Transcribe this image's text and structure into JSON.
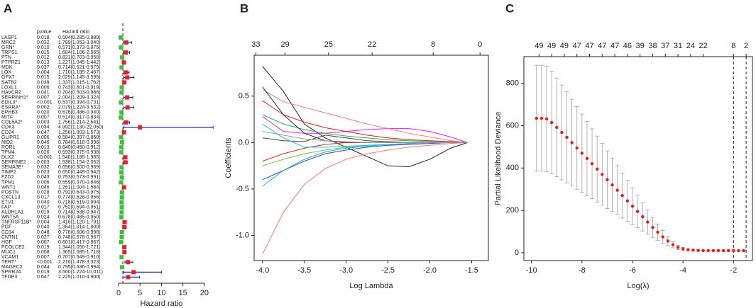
{
  "chart_data": [
    {
      "type": "forest",
      "panel": "A",
      "col_pvalue": "pvalue",
      "col_hr": "Hazard ratio",
      "xlabel": "Hazard ratio",
      "categories": [
        "LASP1",
        "MRC2",
        "GRN*",
        "TRPS1",
        "PTN",
        "PTPRZ1",
        "MDK",
        "LOX",
        "GPX7",
        "SATB2",
        "LOXL1",
        "HAVCR2",
        "SERPINH1*",
        "EDIL3*",
        "ESRRA*",
        "EPHB3",
        "MITF",
        "COL5A2*",
        "CDK3",
        "CD24",
        "GLIPR1",
        "NID2",
        "ROR1",
        "TPM4",
        "DLX2",
        "SERPINE2",
        "SEMA3E*",
        "TIMP2",
        "FZD2",
        "TPM1",
        "WNT1",
        "POSTN",
        "CXCL13",
        "ETV1",
        "FAP",
        "ALDH1A1",
        "WNT5A",
        "TNFRSF11B*",
        "PGF",
        "CD14",
        "CNTN1",
        "HGF",
        "PCOLCE2",
        "MUC1",
        "VCAM1",
        "TERT*",
        "MAGEC2",
        "SPRR2A",
        "TFDP3"
      ],
      "pvalues": [
        "0.018",
        "0.032",
        "0.010",
        "0.015",
        "0.012",
        "0.013",
        "0.037",
        "0.004",
        "0.015",
        "0.039",
        "0.006",
        "0.041",
        "0.007",
        "<0.001",
        "0.002",
        "0.020",
        "0.007",
        "0.003",
        "0.034",
        "0.047",
        "0.006",
        "0.046",
        "0.013",
        "0.026",
        "<0.001",
        "0.003",
        "0.032",
        "0.023",
        "0.043",
        "0.006",
        "0.046",
        "0.028",
        "0.017",
        "0.040",
        "0.017",
        "0.019",
        "0.024",
        "0.004",
        "0.040",
        "0.048",
        "0.027",
        "0.007",
        "0.019",
        "0.008",
        "0.007",
        "<0.001",
        "0.044",
        "0.019",
        "0.047"
      ],
      "values": [
        0.504,
        1.789,
        0.571,
        1.684,
        0.821,
        1.227,
        0.714,
        1.71,
        2.029,
        1.337,
        0.743,
        0.704,
        2.004,
        0.537,
        2.079,
        0.676,
        0.514,
        1.756,
        4.992,
        1.256,
        0.584,
        0.784,
        0.64,
        0.593,
        1.54,
        1.538,
        0.696,
        0.65,
        0.753,
        0.559,
        1.261,
        0.792,
        0.774,
        0.718,
        0.752,
        0.714,
        0.678,
        1.416,
        1.354,
        0.778,
        0.748,
        0.601,
        1.344,
        1.365,
        0.707,
        2.216,
        0.795,
        3.5,
        2.225
      ],
      "lower": [
        0.285,
        1.053,
        0.373,
        1.106,
        0.703,
        1.045,
        0.521,
        1.185,
        1.145,
        1.015,
        0.601,
        0.503,
        1.209,
        0.394,
        1.224,
        0.486,
        0.317,
        1.214,
        1.13,
        1.003,
        0.397,
        0.618,
        0.45,
        0.375,
        1.195,
        1.154,
        0.5,
        0.449,
        0.573,
        0.37,
        1.004,
        0.643,
        0.626,
        0.519,
        0.594,
        0.538,
        0.485,
        1.12,
        1.014,
        0.606,
        0.578,
        0.417,
        1.05,
        1.085,
        0.549,
        1.478,
        0.636,
        1.224,
        1.01
      ],
      "upper": [
        0.889,
        3.04,
        0.875,
        2.565,
        0.958,
        1.442,
        0.979,
        2.467,
        3.595,
        1.762,
        0.919,
        0.986,
        3.324,
        0.731,
        3.532,
        0.94,
        0.834,
        2.541,
        22.05,
        1.573,
        0.858,
        0.996,
        0.912,
        0.938,
        1.985,
        2.052,
        0.969,
        0.942,
        0.991,
        0.846,
        1.584,
        0.975,
        0.956,
        0.994,
        0.951,
        0.947,
        0.95,
        1.791,
        1.809,
        0.998,
        0.967,
        0.867,
        1.721,
        1.718,
        0.91,
        3.323,
        0.994,
        10.011,
        4.9
      ],
      "value_labels": [
        "0.504(0.285-0.889)",
        "1.789(1.053-3.040)",
        "0.571(0.373-0.875)",
        "1.684(1.106-2.565)",
        "0.821(0.703-0.958)",
        "1.227(1.045-1.442)",
        "0.714(0.521-0.979)",
        "1.710(1.185-2.467)",
        "2.029(1.145-3.595)",
        "1.337(1.015-1.762)",
        "0.743(0.601-0.919)",
        "0.704(0.503-0.986)",
        "2.004(1.209-3.324)",
        "0.537(0.394-0.731)",
        "2.079(1.224-3.532)",
        "0.676(0.486-0.940)",
        "0.514(0.317-0.834)",
        "1.756(1.214-2.541)",
        "4.992(1.130-22.050)",
        "1.256(1.003-1.573)",
        "0.584(0.397-0.858)",
        "0.784(0.618-0.996)",
        "0.640(0.450-0.912)",
        "0.593(0.375-0.938)",
        "1.540(1.195-1.985)",
        "1.538(1.154-2.052)",
        "0.696(0.500-0.969)",
        "0.650(0.449-0.942)",
        "0.753(0.573-0.991)",
        "0.559(0.370-0.846)",
        "1.261(1.004-1.584)",
        "0.792(0.643-0.975)",
        "0.774(0.626-0.956)",
        "0.718(0.519-0.994)",
        "0.752(0.594-0.951)",
        "0.714(0.538-0.947)",
        "0.678(0.485-0.950)",
        "1.416(1.120-1.791)",
        "1.354(1.014-1.809)",
        "0.778(0.606-0.998)",
        "0.748(0.578-0.967)",
        "0.601(0.417-0.867)",
        "1.344(1.050-1.721)",
        "1.365(1.085-1.718)",
        "0.707(0.549-0.910)",
        "2.216(1.478-3.323)",
        "0.795(0.636-0.994)",
        "3.500(1.224-10.011)",
        "2.225(1.010-4.900)"
      ],
      "ref_line": 1,
      "color_high": "#e8202a",
      "color_low": "#3cbf3c",
      "ci_color": "#1f2fa8",
      "xlim": [
        0,
        22
      ],
      "xticks": [
        0,
        5,
        10,
        15,
        20
      ]
    },
    {
      "type": "line",
      "panel": "B",
      "xlabel": "Log Lambda",
      "ylabel": "Coefficients",
      "xlim": [
        -4.1,
        -1.3
      ],
      "xticks": [
        {
          "value": -4,
          "label": "-4.0"
        },
        -3.5,
        {
          "value": -3,
          "label": "-3.0"
        },
        -2.5,
        {
          "value": -2,
          "label": "-2.0"
        },
        -1.5
      ],
      "ylim": [
        -1.27,
        0.94
      ],
      "yticks": [
        {
          "value": -1,
          "label": "-1.0"
        },
        -0.5,
        {
          "value": 0,
          "label": "0.0"
        },
        0.5
      ],
      "top_ticks": [
        {
          "value": -4.08,
          "label": "33"
        },
        {
          "value": -3.73,
          "label": "29"
        },
        {
          "value": -3.21,
          "label": "25"
        },
        {
          "value": -2.69,
          "label": "22"
        },
        {
          "value": -1.96,
          "label": "8"
        },
        {
          "value": -1.4,
          "label": "0"
        }
      ],
      "x": [
        -4.0,
        -3.75,
        -3.5,
        -3.25,
        -3.0,
        -2.75,
        -2.5,
        -2.25,
        -2.0,
        -1.75,
        -1.55
      ],
      "series": [
        {
          "color": "#222222",
          "values": [
            0.82,
            0.55,
            0.2,
            0.05,
            -0.05,
            -0.15,
            -0.25,
            -0.26,
            -0.18,
            -0.06,
            0
          ]
        },
        {
          "color": "#f07a7a",
          "values": [
            -1.2,
            -0.75,
            -0.45,
            -0.28,
            -0.18,
            -0.12,
            -0.08,
            -0.05,
            -0.03,
            -0.01,
            0
          ]
        },
        {
          "color": "#e81fd0",
          "values": [
            0.28,
            0.12,
            0.1,
            0.1,
            0.12,
            0.14,
            0.15,
            0.15,
            0.12,
            0.06,
            0
          ]
        },
        {
          "color": "#f08080",
          "values": [
            0.57,
            0.44,
            0.38,
            0.32,
            0.26,
            0.2,
            0.15,
            0.1,
            0.06,
            0.02,
            0
          ]
        },
        {
          "color": "#e41a1c",
          "values": [
            0.45,
            0.3,
            0.22,
            0.16,
            0.12,
            0.08,
            0.05,
            0.03,
            0.02,
            0.01,
            0
          ]
        },
        {
          "color": "#31b04b",
          "values": [
            0.3,
            0.2,
            0.14,
            0.1,
            0.07,
            0.05,
            0.03,
            0.02,
            0.01,
            0,
            0
          ]
        },
        {
          "color": "#1f4fd8",
          "values": [
            -0.4,
            -0.3,
            -0.2,
            -0.12,
            -0.08,
            -0.05,
            -0.03,
            -0.02,
            -0.01,
            0,
            0
          ]
        },
        {
          "color": "#2ca7e0",
          "values": [
            -0.47,
            -0.3,
            -0.18,
            -0.1,
            -0.06,
            -0.04,
            -0.02,
            -0.01,
            0,
            0,
            0
          ]
        },
        {
          "color": "#1a237e",
          "values": [
            0.6,
            0.3,
            0.1,
            0.02,
            0,
            0,
            0,
            0,
            0,
            0,
            0
          ]
        },
        {
          "color": "#7ac142",
          "values": [
            -0.25,
            -0.18,
            -0.12,
            -0.08,
            -0.05,
            -0.03,
            -0.02,
            -0.01,
            0,
            0,
            0
          ]
        },
        {
          "color": "#444444",
          "values": [
            0.05,
            0.02,
            0.01,
            0.08,
            0.05,
            0.02,
            0.01,
            0,
            0,
            0,
            0
          ]
        },
        {
          "color": "#d62728",
          "values": [
            -0.2,
            -0.12,
            -0.06,
            -0.02,
            0,
            0,
            0,
            0,
            0,
            0,
            0
          ]
        },
        {
          "color": "#17becf",
          "values": [
            0.2,
            0.05,
            -0.05,
            -0.05,
            -0.04,
            -0.03,
            -0.02,
            -0.01,
            0,
            0,
            0
          ]
        },
        {
          "color": "#999999",
          "values": [
            0.12,
            0.08,
            0.04,
            0.02,
            0.01,
            0,
            0,
            0,
            0,
            0,
            0
          ]
        }
      ]
    },
    {
      "type": "scatter",
      "panel": "C",
      "xlabel": "Log(λ)",
      "ylabel": "Partial Likelihood Deviance",
      "xlim": [
        -10.3,
        -1.25
      ],
      "xticks": [
        -10,
        -8,
        -6,
        -4,
        -2
      ],
      "ylim": [
        -37,
        926
      ],
      "yticks": [
        0,
        200,
        400,
        600,
        800
      ],
      "top_ticks": [
        {
          "value": -9.7,
          "label": "49"
        },
        {
          "value": -9.2,
          "label": "49"
        },
        {
          "value": -8.7,
          "label": "49"
        },
        {
          "value": -8.2,
          "label": "47"
        },
        {
          "value": -7.7,
          "label": "47"
        },
        {
          "value": -7.2,
          "label": "47"
        },
        {
          "value": -6.7,
          "label": "47"
        },
        {
          "value": -6.2,
          "label": "46"
        },
        {
          "value": -5.7,
          "label": "39"
        },
        {
          "value": -5.2,
          "label": "38"
        },
        {
          "value": -4.7,
          "label": "37"
        },
        {
          "value": -4.2,
          "label": "31"
        },
        {
          "value": -3.7,
          "label": "24"
        },
        {
          "value": -3.2,
          "label": "22"
        },
        {
          "value": -2.0,
          "label": "8"
        },
        {
          "value": -1.5,
          "label": "2"
        }
      ],
      "vlines": [
        -2.0,
        -1.5
      ],
      "color": "#e51c1c",
      "error_color": "#a0a0a0",
      "x": [
        -9.8,
        -9.6,
        -9.4,
        -9.2,
        -9.0,
        -8.8,
        -8.6,
        -8.4,
        -8.2,
        -8.0,
        -7.8,
        -7.6,
        -7.4,
        -7.2,
        -7.0,
        -6.8,
        -6.6,
        -6.4,
        -6.2,
        -6.0,
        -5.8,
        -5.6,
        -5.4,
        -5.2,
        -5.0,
        -4.8,
        -4.6,
        -4.4,
        -4.2,
        -4.0,
        -3.8,
        -3.6,
        -3.4,
        -3.2,
        -3.0,
        -2.8,
        -2.6,
        -2.4,
        -2.2,
        -2.0,
        -1.8,
        -1.6
      ],
      "values": [
        635,
        635,
        632,
        615,
        592,
        568,
        545,
        520,
        495,
        470,
        445,
        420,
        395,
        370,
        345,
        320,
        295,
        270,
        245,
        220,
        195,
        170,
        145,
        120,
        97,
        75,
        55,
        38,
        25,
        18,
        14,
        12,
        11,
        10,
        10,
        10,
        10,
        10,
        10,
        10,
        10,
        10
      ],
      "errors": [
        250,
        250,
        249,
        242,
        233,
        224,
        215,
        205,
        195,
        185,
        175,
        165,
        156,
        146,
        136,
        126,
        116,
        106,
        97,
        87,
        77,
        67,
        57,
        47,
        38,
        30,
        22,
        15,
        10,
        7,
        5,
        4,
        3,
        3,
        3,
        3,
        3,
        3,
        3,
        3,
        3,
        3
      ]
    }
  ]
}
